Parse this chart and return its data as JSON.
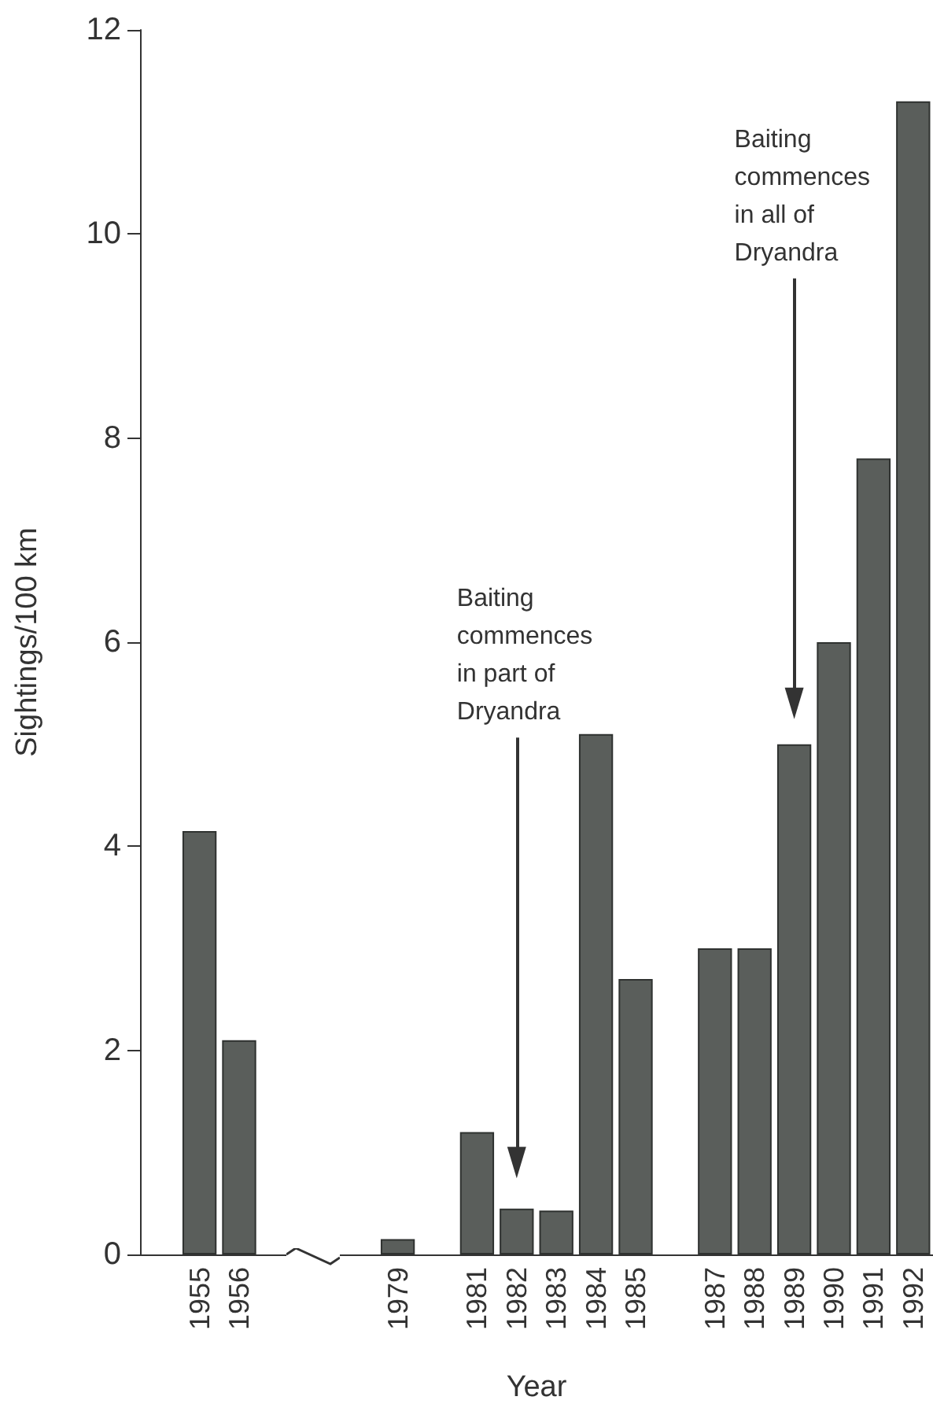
{
  "chart_data": {
    "type": "bar",
    "xlabel": "Year",
    "ylabel": "Sightings/100 km",
    "categories": [
      null,
      "1955",
      "1956",
      null,
      null,
      null,
      "1979",
      null,
      "1981",
      "1982",
      "1983",
      "1984",
      "1985",
      null,
      "1987",
      "1988",
      "1989",
      "1990",
      "1991",
      "1992"
    ],
    "values": [
      null,
      4.15,
      2.1,
      null,
      null,
      null,
      0.15,
      null,
      1.2,
      0.45,
      0.43,
      5.1,
      2.7,
      null,
      3.0,
      3.0,
      5.0,
      6.0,
      7.8,
      11.3
    ],
    "color": "#5a5e5b",
    "ylim": [
      0,
      12
    ],
    "yticks": [
      0,
      2,
      4,
      6,
      8,
      10,
      12
    ],
    "grid": false,
    "annotations": [
      {
        "text": "Baiting commences in part of Dryandra",
        "x": "1982",
        "y": 0.9
      },
      {
        "text": "Baiting commences in all of Dryandra",
        "x": "1989",
        "y": 5.4
      }
    ]
  }
}
